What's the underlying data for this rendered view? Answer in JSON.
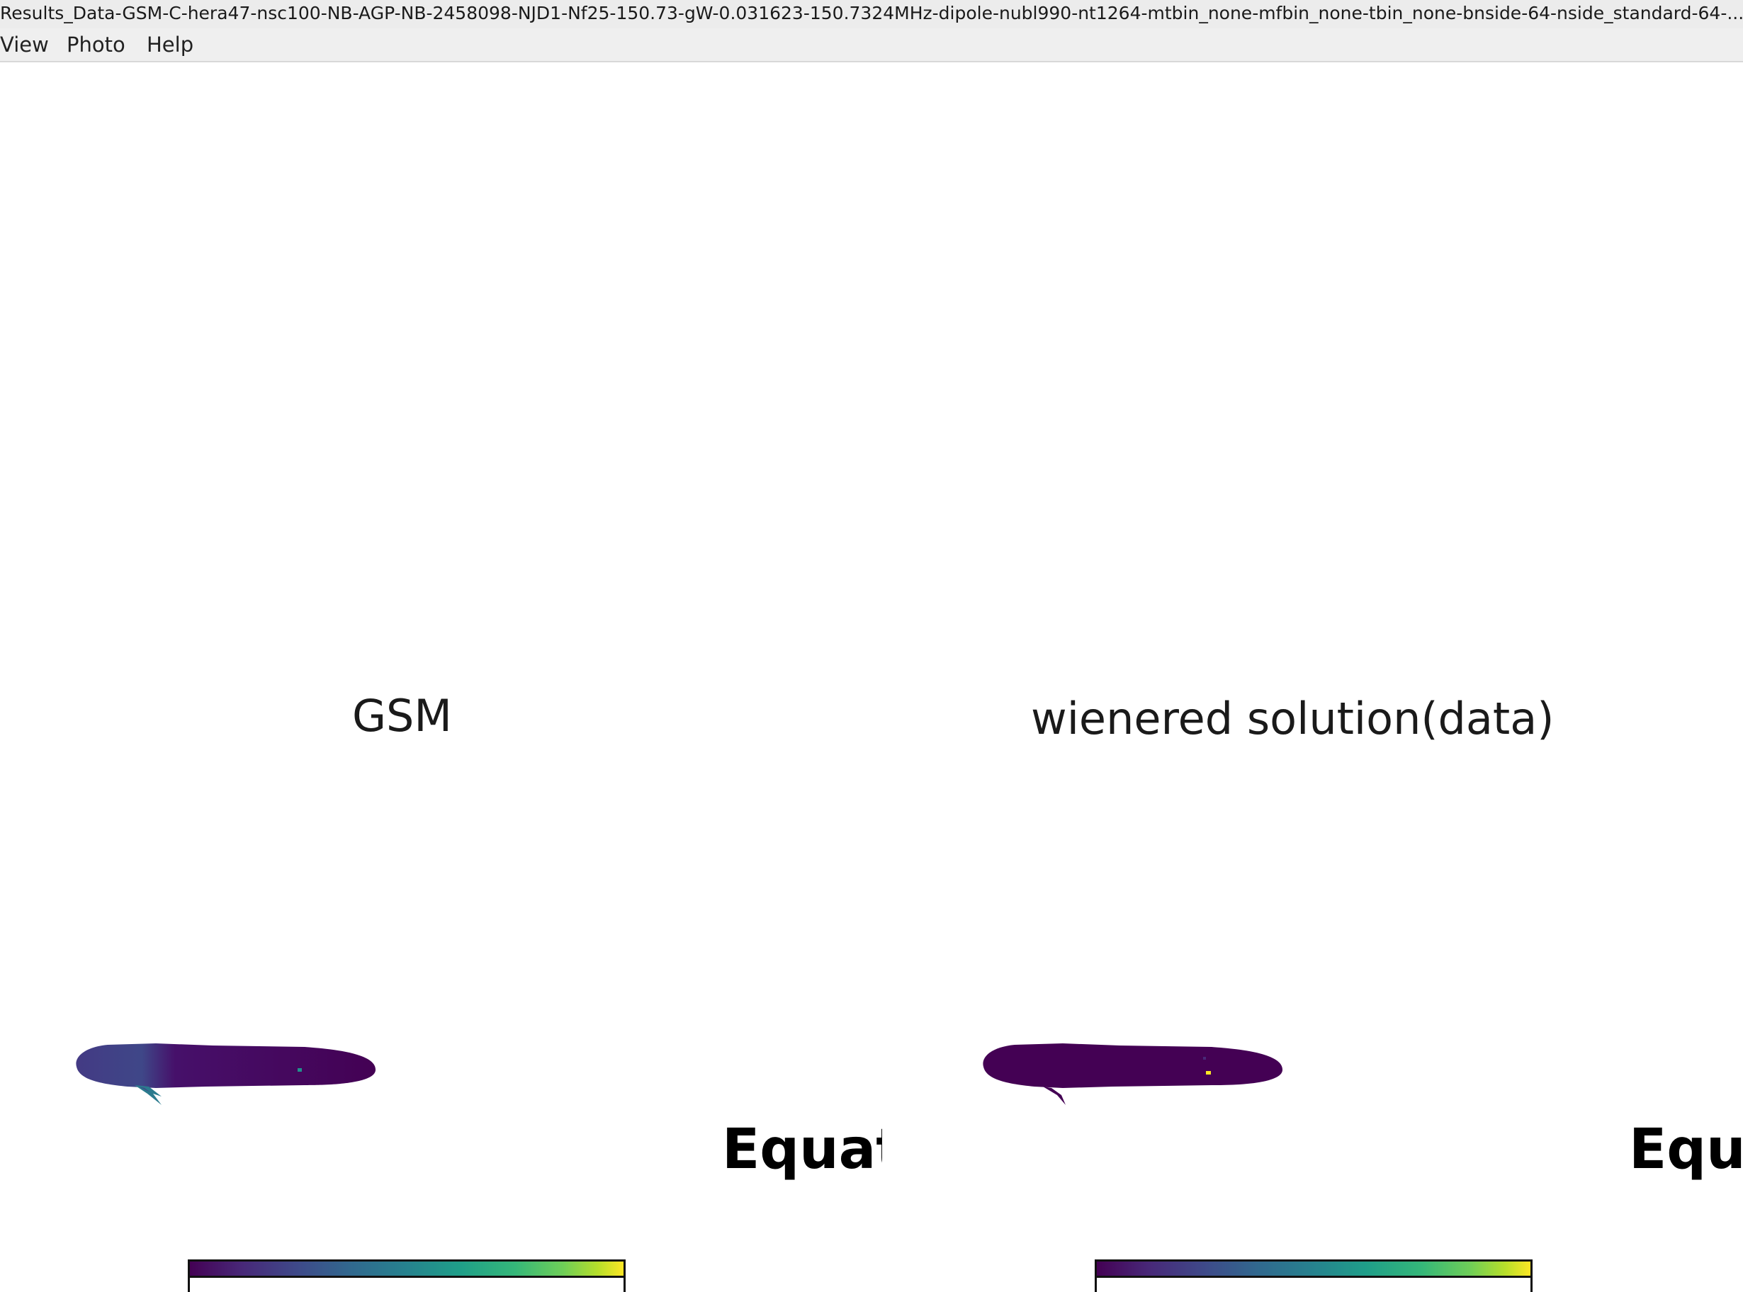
{
  "window": {
    "title": "Results_Data-GSM-C-hera47-nsc100-NB-AGP-NB-2458098-NJD1-Nf25-150.73-gW-0.031623-150.7324MHz-dipole-nubl990-nt1264-mtbin_none-mfbin_none-tbin_none-bnside-64-nside_standard-64-..."
  },
  "menubar": {
    "items": [
      "View",
      "Photo",
      "Help"
    ]
  },
  "figure": {
    "panels": [
      {
        "title": "GSM",
        "projection_label": "Equat",
        "colormap": "viridis"
      },
      {
        "title": "wienered solution(data)",
        "projection_label": "Equ",
        "colormap": "viridis"
      }
    ],
    "colors": {
      "map_base": "#440154",
      "map_mid": "#3b528b",
      "map_teal": "#21918c",
      "map_yellow": "#fde725"
    }
  }
}
